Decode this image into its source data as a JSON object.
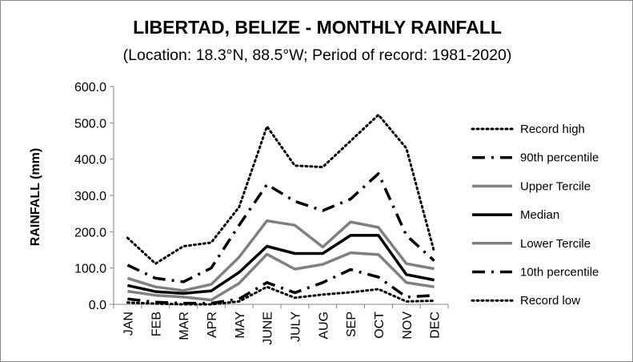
{
  "chart_data": {
    "type": "line",
    "title": "LIBERTAD, BELIZE - MONTHLY RAINFALL",
    "subtitle": "(Location: 18.3°N, 88.5°W; Period of record: 1981-2020)",
    "xlabel": "",
    "ylabel": "RAINFALL (mm)",
    "ylim": [
      0,
      600
    ],
    "yticks": [
      "0.0",
      "100.0",
      "200.0",
      "300.0",
      "400.0",
      "500.0",
      "600.0"
    ],
    "categories": [
      "JAN",
      "FEB",
      "MAR",
      "APR",
      "MAY",
      "JUNE",
      "JULY",
      "AUG",
      "SEP",
      "OCT",
      "NOV",
      "DEC"
    ],
    "grid": false,
    "legend_position": "right",
    "series": [
      {
        "name": "Record high",
        "style": "dotted",
        "color": "#000000",
        "values": [
          183,
          112,
          160,
          170,
          268,
          490,
          382,
          378,
          450,
          522,
          430,
          145
        ]
      },
      {
        "name": "90th percentile",
        "style": "dashdot",
        "color": "#000000",
        "values": [
          108,
          72,
          62,
          100,
          218,
          330,
          284,
          258,
          290,
          360,
          190,
          120
        ]
      },
      {
        "name": "Upper Tercile",
        "style": "solid-gray",
        "color": "#808080",
        "values": [
          72,
          48,
          38,
          55,
          130,
          230,
          218,
          158,
          227,
          212,
          112,
          98
        ]
      },
      {
        "name": "Median",
        "style": "solid-black",
        "color": "#000000",
        "values": [
          52,
          35,
          30,
          37,
          88,
          160,
          140,
          140,
          190,
          190,
          82,
          67
        ]
      },
      {
        "name": "Lower Tercile",
        "style": "solid-gray",
        "color": "#808080",
        "values": [
          36,
          25,
          20,
          12,
          58,
          138,
          97,
          110,
          142,
          137,
          60,
          48
        ]
      },
      {
        "name": "10th percentile",
        "style": "dashdot",
        "color": "#000000",
        "values": [
          15,
          6,
          3,
          3,
          15,
          60,
          32,
          60,
          96,
          75,
          20,
          25
        ]
      },
      {
        "name": "Record low",
        "style": "dotted",
        "color": "#000000",
        "values": [
          5,
          2,
          0,
          0,
          8,
          48,
          18,
          27,
          33,
          42,
          8,
          10
        ]
      }
    ]
  }
}
